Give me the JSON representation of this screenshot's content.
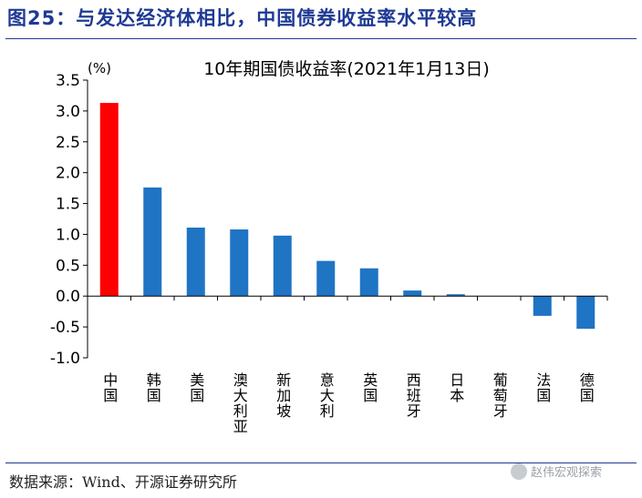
{
  "figure": {
    "title": "图25：与发达经济体相比，中国债券收益率水平较高",
    "source": "数据来源：Wind、开源证券研究所",
    "watermark": "赵伟宏观探索"
  },
  "colors": {
    "highlight": "#ff0000",
    "bar": "#1f74c4",
    "title": "#1f3a93"
  },
  "chart_data": {
    "type": "bar",
    "title": "10年期国债收益率(2021年1月13日)",
    "unit": "(%)",
    "categories": [
      "中国",
      "韩国",
      "美国",
      "澳大利亚",
      "新加坡",
      "意大利",
      "英国",
      "西班牙",
      "日本",
      "葡萄牙",
      "法国",
      "德国"
    ],
    "values": [
      3.13,
      1.76,
      1.11,
      1.08,
      0.98,
      0.57,
      0.45,
      0.09,
      0.03,
      0.0,
      -0.32,
      -0.53
    ],
    "highlight_index": 0,
    "ylim": [
      -1.0,
      3.5
    ],
    "yticks": [
      "3.5",
      "3.0",
      "2.5",
      "2.0",
      "1.5",
      "1.0",
      "0.5",
      "0.0",
      "-0.5",
      "-1.0"
    ],
    "grid": false
  }
}
